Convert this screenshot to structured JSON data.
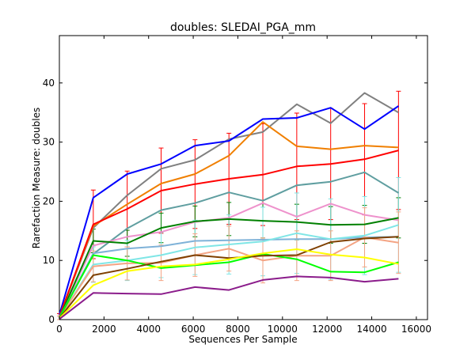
{
  "chart_data": {
    "type": "line",
    "title": "doubles: SLEDAI_PGA_mm",
    "xlabel": "Sequences Per Sample",
    "ylabel": "Rarefaction Measure: doubles",
    "xlim": [
      0,
      16500
    ],
    "ylim": [
      0,
      48
    ],
    "xticks": [
      0,
      2000,
      4000,
      6000,
      8000,
      10000,
      12000,
      14000,
      16000
    ],
    "yticks": [
      0,
      10,
      20,
      30,
      40
    ],
    "grid": false,
    "legend": "none",
    "x": [
      0,
      1520,
      3040,
      4560,
      6080,
      7600,
      9120,
      10640,
      12160,
      13680,
      15200
    ],
    "series": [
      {
        "color": "#808080",
        "values": [
          0.5,
          15.5,
          21.0,
          25.5,
          27.0,
          30.5,
          31.7,
          36.4,
          33.2,
          38.3,
          35.0
        ]
      },
      {
        "color": "#0000ff",
        "values": [
          0.8,
          20.6,
          24.6,
          26.3,
          29.4,
          30.2,
          33.9,
          34.1,
          35.8,
          32.2,
          36.1
        ]
      },
      {
        "color": "#f07f00",
        "values": [
          0.5,
          15.8,
          19.5,
          23.0,
          24.6,
          27.7,
          33.4,
          29.3,
          28.8,
          29.4,
          29.1
        ]
      },
      {
        "color": "#ff0000",
        "values": [
          0.5,
          16.1,
          18.7,
          21.8,
          22.9,
          23.8,
          24.5,
          25.9,
          26.3,
          27.1,
          28.6
        ],
        "error": [
          0.5,
          5.8,
          6.4,
          7.2,
          7.5,
          7.7,
          8.6,
          9.0,
          9.4,
          9.4,
          10.0
        ]
      },
      {
        "color": "#5f9ea0",
        "values": [
          0.4,
          11.1,
          15.4,
          18.5,
          19.7,
          21.5,
          20.1,
          22.7,
          23.3,
          24.9,
          21.4
        ]
      },
      {
        "color": "#ee92cc",
        "values": [
          0.4,
          12.5,
          14.0,
          14.8,
          16.5,
          17.2,
          19.7,
          17.4,
          19.6,
          17.7,
          16.8
        ]
      },
      {
        "color": "#008000",
        "values": [
          0.3,
          13.3,
          12.9,
          15.5,
          16.6,
          17.0,
          16.7,
          16.5,
          16.0,
          16.1,
          17.2
        ],
        "error": [
          0.3,
          2.0,
          2.2,
          2.5,
          2.6,
          2.8,
          2.9,
          3.0,
          3.1,
          3.2,
          3.4
        ]
      },
      {
        "color": "#7fb2d8",
        "values": [
          0.3,
          11.2,
          12.0,
          12.4,
          13.3,
          13.4,
          13.5,
          13.6,
          13.6,
          13.9,
          14.0
        ]
      },
      {
        "color": "#7fe6e6",
        "values": [
          0.3,
          9.3,
          10.0,
          10.9,
          12.2,
          12.7,
          13.2,
          14.6,
          13.6,
          14.2,
          16.0
        ],
        "error": [
          0.3,
          3.0,
          3.4,
          3.8,
          4.6,
          5.0,
          5.8,
          6.8,
          6.8,
          6.6,
          8.0
        ]
      },
      {
        "color": "#f4a484",
        "values": [
          0.3,
          9.0,
          9.5,
          9.6,
          10.9,
          12.0,
          10.0,
          10.8,
          10.8,
          13.9,
          13.0
        ],
        "error": [
          0.3,
          2.6,
          2.8,
          3.0,
          3.6,
          3.8,
          3.8,
          4.2,
          4.2,
          5.0,
          5.2
        ]
      },
      {
        "color": "#00ff00",
        "values": [
          0.3,
          10.9,
          10.0,
          8.7,
          9.2,
          9.7,
          11.1,
          10.2,
          8.1,
          8.0,
          9.7
        ]
      },
      {
        "color": "#7f4000",
        "values": [
          0.2,
          7.5,
          8.6,
          9.8,
          10.9,
          10.4,
          10.8,
          10.9,
          13.1,
          13.7,
          14.0
        ]
      },
      {
        "color": "#ffff00",
        "values": [
          0.2,
          5.8,
          8.2,
          9.0,
          9.3,
          10.2,
          11.2,
          11.9,
          11.0,
          10.5,
          9.4
        ]
      },
      {
        "color": "#8b1c8b",
        "values": [
          0.1,
          4.5,
          4.4,
          4.3,
          5.5,
          5.0,
          6.7,
          7.3,
          7.1,
          6.4,
          6.9
        ]
      }
    ]
  }
}
